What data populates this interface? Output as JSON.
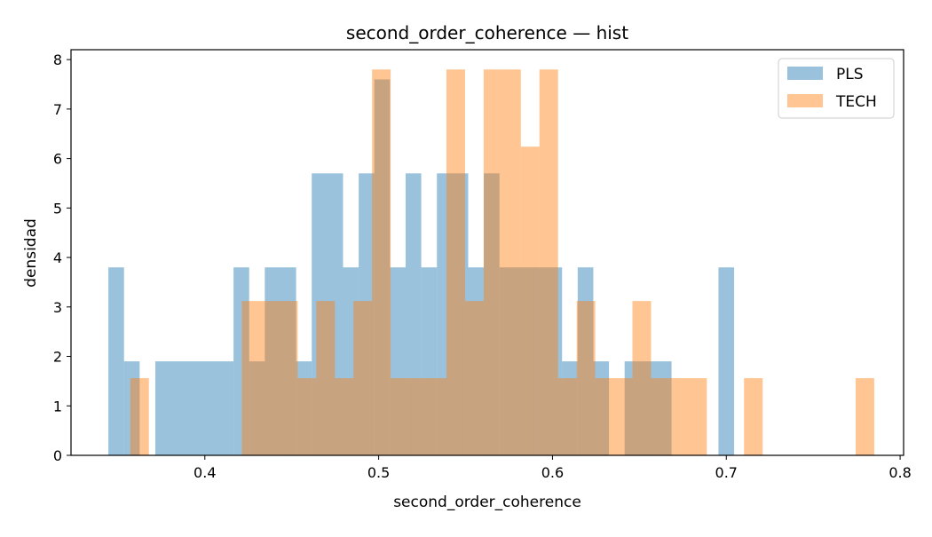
{
  "chart_data": {
    "type": "bar",
    "title": "second_order_coherence — hist",
    "xlabel": "second_order_coherence",
    "ylabel": "densidad",
    "xlim": [
      0.323,
      0.802
    ],
    "ylim": [
      0,
      8.2
    ],
    "xticks": [
      0.4,
      0.5,
      0.6,
      0.7,
      0.8
    ],
    "xtick_labels": [
      "0.4",
      "0.5",
      "0.6",
      "0.7",
      "0.8"
    ],
    "yticks": [
      0,
      1,
      2,
      3,
      4,
      5,
      6,
      7,
      8
    ],
    "ytick_labels": [
      "0",
      "1",
      "2",
      "3",
      "4",
      "5",
      "6",
      "7",
      "8"
    ],
    "legend_position": "top-right",
    "grid": false,
    "series": [
      {
        "name": "PLS",
        "color": "#1f77b4",
        "alpha": 0.45,
        "bins": [
          [
            0.3445,
            0.3535,
            3.8
          ],
          [
            0.3535,
            0.3625,
            1.9
          ],
          [
            0.3625,
            0.3715,
            0.0
          ],
          [
            0.3715,
            0.4165,
            1.9
          ],
          [
            0.4165,
            0.4255,
            3.8
          ],
          [
            0.4255,
            0.4345,
            1.9
          ],
          [
            0.4345,
            0.4525,
            3.8
          ],
          [
            0.4525,
            0.4615,
            1.9
          ],
          [
            0.4615,
            0.4795,
            5.7
          ],
          [
            0.4795,
            0.4885,
            3.8
          ],
          [
            0.4885,
            0.4975,
            5.7
          ],
          [
            0.4975,
            0.5065,
            7.6
          ],
          [
            0.5065,
            0.5155,
            3.8
          ],
          [
            0.5155,
            0.5245,
            5.7
          ],
          [
            0.5245,
            0.5335,
            3.8
          ],
          [
            0.5335,
            0.5515,
            5.7
          ],
          [
            0.5515,
            0.5605,
            3.8
          ],
          [
            0.5605,
            0.5695,
            5.7
          ],
          [
            0.5695,
            0.6055,
            3.8
          ],
          [
            0.6055,
            0.6145,
            1.9
          ],
          [
            0.6145,
            0.6235,
            3.8
          ],
          [
            0.6235,
            0.6325,
            1.9
          ],
          [
            0.6325,
            0.6415,
            0.0
          ],
          [
            0.6415,
            0.6595,
            1.9
          ],
          [
            0.6595,
            0.6685,
            1.9
          ],
          [
            0.6685,
            0.6955,
            0.0
          ],
          [
            0.6955,
            0.7045,
            3.8
          ]
        ]
      },
      {
        "name": "TECH",
        "color": "#ff7f0e",
        "alpha": 0.45,
        "bins": [
          [
            0.3571,
            0.3678,
            1.56
          ],
          [
            0.3678,
            0.4213,
            0.0
          ],
          [
            0.4213,
            0.4427,
            3.12
          ],
          [
            0.4427,
            0.4534,
            3.12
          ],
          [
            0.4534,
            0.4641,
            1.56
          ],
          [
            0.4641,
            0.4748,
            3.12
          ],
          [
            0.4748,
            0.4855,
            1.56
          ],
          [
            0.4855,
            0.4962,
            3.12
          ],
          [
            0.4962,
            0.5069,
            7.8
          ],
          [
            0.5069,
            0.5176,
            1.56
          ],
          [
            0.5176,
            0.5283,
            1.56
          ],
          [
            0.5283,
            0.539,
            1.56
          ],
          [
            0.539,
            0.5497,
            7.8
          ],
          [
            0.5497,
            0.5604,
            3.12
          ],
          [
            0.5604,
            0.5711,
            7.8
          ],
          [
            0.5711,
            0.5818,
            7.8
          ],
          [
            0.5818,
            0.5925,
            6.24
          ],
          [
            0.5925,
            0.6032,
            7.8
          ],
          [
            0.6032,
            0.6139,
            1.56
          ],
          [
            0.6139,
            0.6246,
            3.12
          ],
          [
            0.6246,
            0.6353,
            1.56
          ],
          [
            0.6353,
            0.646,
            1.56
          ],
          [
            0.646,
            0.6567,
            3.12
          ],
          [
            0.6567,
            0.6674,
            1.56
          ],
          [
            0.6674,
            0.6888,
            1.56
          ],
          [
            0.6888,
            0.6995,
            0.0
          ],
          [
            0.6995,
            0.7102,
            0.0
          ],
          [
            0.7102,
            0.7209,
            1.56
          ],
          [
            0.7209,
            0.7744,
            0.0
          ],
          [
            0.7744,
            0.7851,
            1.56
          ]
        ]
      }
    ]
  }
}
